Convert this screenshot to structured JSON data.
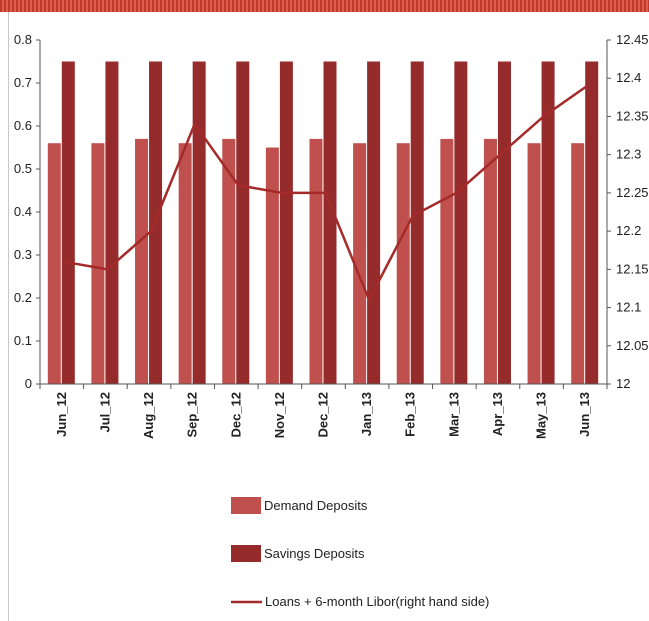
{
  "chart_data": {
    "type": "bar",
    "categories": [
      "Jun_12",
      "Jul_12",
      "Aug_12",
      "Sep_12",
      "Dec_12",
      "Nov_12",
      "Dec_12",
      "Jan_13",
      "Feb_13",
      "Mar_13",
      "Apr_13",
      "May_13",
      "Jun_13"
    ],
    "series": [
      {
        "name": "Demand Deposits",
        "type": "bar",
        "axis": "left",
        "color": "#c0504d",
        "values": [
          0.56,
          0.56,
          0.57,
          0.56,
          0.57,
          0.55,
          0.57,
          0.56,
          0.56,
          0.57,
          0.57,
          0.56,
          0.56
        ]
      },
      {
        "name": "Savings Deposits",
        "type": "bar",
        "axis": "left",
        "color": "#962b2b",
        "values": [
          0.75,
          0.75,
          0.75,
          0.75,
          0.75,
          0.75,
          0.75,
          0.75,
          0.75,
          0.75,
          0.75,
          0.75,
          0.75
        ]
      },
      {
        "name": "Loans + 6-month Libor(right hand side)",
        "type": "line",
        "axis": "right",
        "color": "#a52a2a",
        "values": [
          12.16,
          12.15,
          12.2,
          12.34,
          12.26,
          12.25,
          12.25,
          12.11,
          12.22,
          12.25,
          12.3,
          12.35,
          12.39
        ]
      }
    ],
    "y_left": {
      "min": 0,
      "max": 0.8,
      "step": 0.1,
      "ticks": [
        "0",
        "0.1",
        "0.2",
        "0.3",
        "0.4",
        "0.5",
        "0.6",
        "0.7",
        "0.8"
      ]
    },
    "y_right": {
      "min": 12,
      "max": 12.45,
      "step": 0.05,
      "ticks": [
        "12",
        "12.05",
        "12.1",
        "12.15",
        "12.2",
        "12.25",
        "12.3",
        "12.35",
        "12.4",
        "12.45"
      ]
    },
    "grid": false,
    "legend_position": "bottom"
  }
}
